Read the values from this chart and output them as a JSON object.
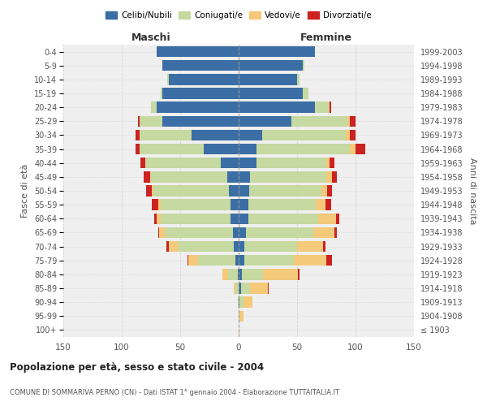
{
  "age_groups": [
    "100+",
    "95-99",
    "90-94",
    "85-89",
    "80-84",
    "75-79",
    "70-74",
    "65-69",
    "60-64",
    "55-59",
    "50-54",
    "45-49",
    "40-44",
    "35-39",
    "30-34",
    "25-29",
    "20-24",
    "15-19",
    "10-14",
    "5-9",
    "0-4"
  ],
  "birth_years": [
    "≤ 1903",
    "1904-1908",
    "1909-1913",
    "1914-1918",
    "1919-1923",
    "1924-1928",
    "1929-1933",
    "1934-1938",
    "1939-1943",
    "1944-1948",
    "1949-1953",
    "1954-1958",
    "1959-1963",
    "1964-1968",
    "1969-1973",
    "1974-1978",
    "1979-1983",
    "1984-1988",
    "1989-1993",
    "1994-1998",
    "1999-2003"
  ],
  "colors": {
    "celibi": "#3a6ea5",
    "coniugati": "#c5d9a0",
    "vedovi": "#f5c97a",
    "divorziati": "#cc2222"
  },
  "males": {
    "celibi": [
      0,
      0,
      0,
      0,
      1,
      3,
      4,
      5,
      7,
      7,
      8,
      10,
      15,
      30,
      40,
      65,
      70,
      65,
      60,
      65,
      70
    ],
    "coniugati": [
      0,
      0,
      1,
      3,
      8,
      32,
      48,
      58,
      60,
      60,
      65,
      65,
      65,
      55,
      45,
      20,
      5,
      2,
      1,
      0,
      0
    ],
    "vedovi": [
      0,
      0,
      0,
      1,
      5,
      8,
      8,
      5,
      3,
      2,
      1,
      1,
      0,
      0,
      0,
      0,
      0,
      0,
      0,
      0,
      0
    ],
    "divorziati": [
      0,
      0,
      0,
      0,
      0,
      1,
      2,
      1,
      2,
      5,
      5,
      5,
      4,
      3,
      3,
      1,
      0,
      0,
      0,
      0,
      0
    ]
  },
  "females": {
    "celibi": [
      0,
      0,
      1,
      2,
      3,
      5,
      5,
      6,
      8,
      8,
      9,
      10,
      15,
      15,
      20,
      45,
      65,
      55,
      50,
      55,
      65
    ],
    "coniugati": [
      0,
      1,
      3,
      8,
      18,
      42,
      45,
      58,
      60,
      58,
      62,
      65,
      60,
      80,
      72,
      48,
      12,
      5,
      2,
      1,
      0
    ],
    "vedovi": [
      1,
      3,
      8,
      15,
      30,
      28,
      22,
      18,
      15,
      8,
      5,
      5,
      3,
      5,
      3,
      2,
      1,
      0,
      0,
      0,
      0
    ],
    "divorziati": [
      0,
      0,
      0,
      1,
      1,
      5,
      2,
      2,
      3,
      5,
      4,
      4,
      4,
      8,
      5,
      5,
      1,
      0,
      0,
      0,
      0
    ]
  },
  "title": "Popolazione per età, sesso e stato civile - 2004",
  "subtitle": "COMUNE DI SOMMARIVA PERNO (CN) - Dati ISTAT 1° gennaio 2004 - Elaborazione TUTTAITALIA.IT",
  "xlabel_left": "Maschi",
  "xlabel_right": "Femmine",
  "ylabel_left": "Fasce di età",
  "ylabel_right": "Anni di nascita",
  "xlim": 150,
  "legend_labels": [
    "Celibi/Nubili",
    "Coniugati/e",
    "Vedovi/e",
    "Divorziati/e"
  ],
  "background_color": "#ffffff",
  "plot_bg_color": "#efefef",
  "grid_color": "#cccccc"
}
